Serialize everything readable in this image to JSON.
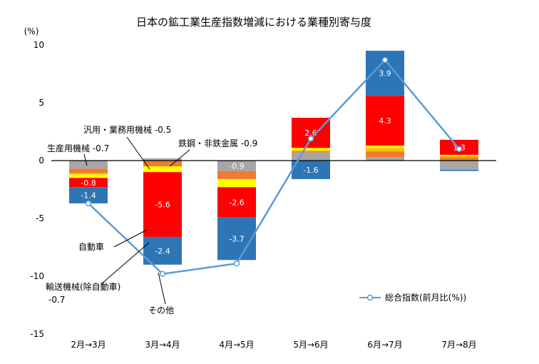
{
  "chart_data": {
    "type": "bar",
    "stacked": true,
    "title": "日本の鉱工業生産指数増減における業種別寄与度",
    "ylabel": "(%)",
    "ylim": [
      -15,
      10
    ],
    "yticks": [
      10,
      5,
      0,
      -5,
      -10,
      -15
    ],
    "ytick_labels": [
      "10",
      "5",
      "0",
      "-5",
      "-10",
      "-15"
    ],
    "grid": false,
    "categories": [
      "2月→3月",
      "3月→4月",
      "4月→5月",
      "5月→6月",
      "6月→7月",
      "7月→8月"
    ],
    "series": [
      {
        "name": "生産用機械",
        "color": "#a6a6a6",
        "values": [
          -0.7,
          0.2,
          -0.9,
          0.7,
          0.3,
          -0.8
        ]
      },
      {
        "name": "汎用・業務用機械",
        "color": "#ed7d31",
        "values": [
          -0.4,
          -0.5,
          -0.7,
          0.1,
          0.5,
          0.3
        ]
      },
      {
        "name": "鉄鋼・非鉄金属",
        "color": "#ffc000",
        "values": [
          -0.1,
          0.0,
          0.0,
          0.1,
          0.3,
          0.1
        ]
      },
      {
        "name": "輸送機械(除自動車)",
        "color": "#ffff00",
        "values": [
          -0.3,
          -0.5,
          -0.7,
          0.2,
          0.2,
          0.1
        ]
      },
      {
        "name": "自動車",
        "color": "#ff0000",
        "values": [
          -0.8,
          -5.6,
          -2.6,
          2.6,
          4.3,
          1.3
        ]
      },
      {
        "name": "その他",
        "color": "#2e75b6",
        "values": [
          -1.4,
          -2.4,
          -3.7,
          -1.6,
          3.9,
          -0.1
        ]
      }
    ],
    "line": {
      "name": "総合指数(前月比(%))",
      "color": "#5b9bd5",
      "values": [
        -3.7,
        -9.8,
        -8.9,
        1.9,
        8.7,
        1.0
      ]
    },
    "data_labels": {
      "自動車": [
        "-0.8",
        "-5.6",
        "-2.6",
        "2.6",
        "4.3",
        "1.3"
      ],
      "その他": [
        "-1.4",
        "-2.4",
        "-3.7",
        "-1.6",
        "3.9",
        ""
      ],
      "生産用機械": [
        "",
        "",
        "-0.9",
        "",
        "",
        ""
      ]
    },
    "annotations": [
      {
        "text": "生産用機械 -0.7"
      },
      {
        "text": "汎用・業務用機械 -0.5"
      },
      {
        "text": "鉄鋼・非鉄金属 -0.9"
      },
      {
        "text": "自動車"
      },
      {
        "text": "輸送機械(除自動車)"
      },
      {
        "text": "-0.7"
      },
      {
        "text": "その他"
      }
    ],
    "legend_position": "bottom-right"
  }
}
